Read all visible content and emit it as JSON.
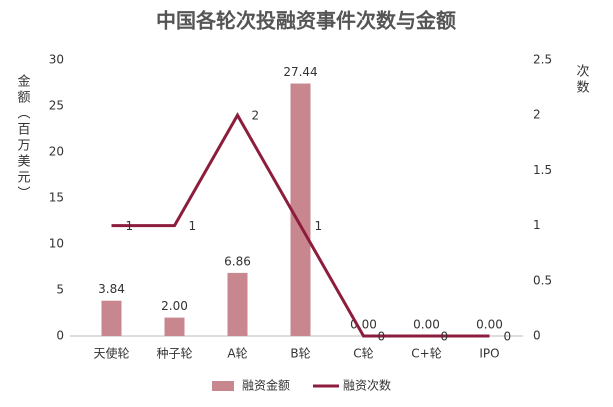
{
  "chart_data": {
    "type": "bar_line",
    "title": "中国各轮次投融资事件次数与金额",
    "ylabel": "金额（百万美元）",
    "y2label": "次数",
    "categories": [
      "天使轮",
      "种子轮",
      "A轮",
      "B轮",
      "C轮",
      "C+轮",
      "IPO"
    ],
    "ylim": [
      0,
      30
    ],
    "yticks": [
      0,
      5,
      10,
      15,
      20,
      25,
      30
    ],
    "y2lim": [
      0,
      2.5
    ],
    "y2ticks": [
      0,
      0.5,
      1,
      1.5,
      2,
      2.5
    ],
    "legend": "bottom",
    "series": [
      {
        "name": "融资金额",
        "type": "bar",
        "color": "#c8878f",
        "values": [
          3.84,
          2.0,
          6.86,
          27.44,
          0,
          0,
          0
        ],
        "value_labels": [
          "3.84",
          "2.00",
          "6.86",
          "27.44",
          "0.00",
          "0.00",
          "0.00"
        ]
      },
      {
        "name": "融资次数",
        "type": "line",
        "axis": "y2",
        "color": "#8c1d3c",
        "values": [
          1,
          1,
          2,
          1,
          0,
          0,
          0
        ]
      }
    ]
  }
}
